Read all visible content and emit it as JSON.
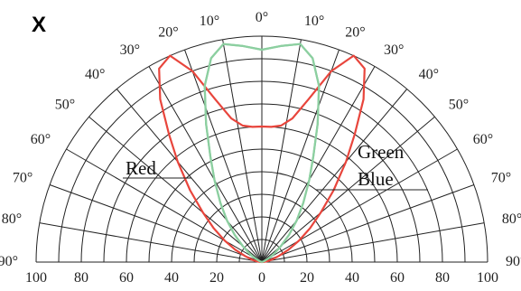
{
  "chart_data": {
    "type": "polar",
    "panel_label": "X",
    "radial_ticks": [
      "100",
      "80",
      "60",
      "40",
      "20",
      "0",
      "20",
      "40",
      "60",
      "80",
      "100"
    ],
    "angle_ticks_left": [
      "0°",
      "10°",
      "20°",
      "30°",
      "40°",
      "50°",
      "60°",
      "70°",
      "80°",
      "90°"
    ],
    "angle_ticks_right": [
      "10°",
      "20°",
      "30°",
      "40°",
      "50°",
      "60°",
      "70°",
      "80°",
      "90°"
    ],
    "rmax": 100,
    "angle_range": [
      -90,
      90
    ],
    "grid": true,
    "series": [
      {
        "name": "Red",
        "color": "#e8453c",
        "angles": [
          0,
          4,
          8,
          12,
          16,
          20,
          24,
          28,
          32,
          36,
          40,
          45,
          50,
          55,
          60,
          65,
          70,
          75,
          80,
          85,
          90
        ],
        "values": [
          60,
          60,
          61,
          65,
          75,
          90,
          100,
          97,
          85,
          70,
          58,
          45,
          34,
          26,
          19,
          13,
          8,
          5,
          3,
          1,
          0
        ]
      },
      {
        "name": "Green",
        "color": "#8ccfa0",
        "angles": [
          0,
          5,
          10,
          14,
          18,
          22,
          26,
          30,
          35,
          40,
          45,
          50,
          55,
          60,
          70,
          80,
          90
        ],
        "values": [
          94,
          96,
          98,
          93,
          82,
          66,
          52,
          42,
          32,
          24,
          17,
          11,
          7,
          4,
          1,
          0,
          0
        ]
      },
      {
        "name": "Blue",
        "color": "#8ccfa0",
        "angles": [
          0,
          5,
          10,
          14,
          18,
          22,
          26,
          30,
          35,
          40,
          45,
          50,
          55,
          60,
          70,
          80,
          90
        ],
        "values": [
          94,
          96,
          98,
          93,
          82,
          66,
          52,
          42,
          32,
          24,
          17,
          11,
          7,
          4,
          1,
          0,
          0
        ]
      }
    ]
  }
}
